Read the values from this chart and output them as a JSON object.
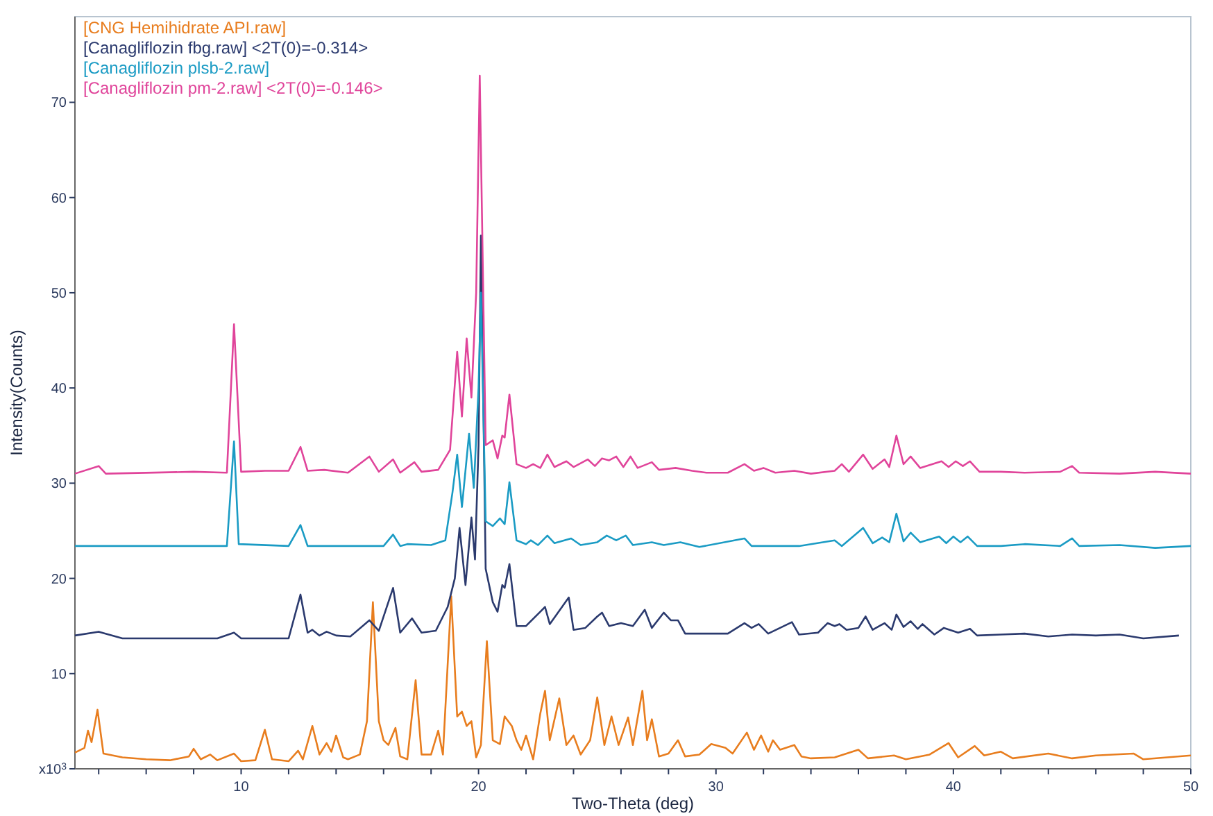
{
  "chart_data": {
    "type": "line",
    "xlabel": "Two-Theta (deg)",
    "ylabel": "Intensity(Counts)",
    "xlim": [
      3,
      50
    ],
    "ylim": [
      0,
      79
    ],
    "xticks": [
      {
        "value": 4,
        "label": null
      },
      {
        "value": 6,
        "label": null
      },
      {
        "value": 8,
        "label": null
      },
      10,
      {
        "value": 12,
        "label": null
      },
      {
        "value": 14,
        "label": null
      },
      {
        "value": 16,
        "label": null
      },
      {
        "value": 18,
        "label": null
      },
      20,
      {
        "value": 22,
        "label": null
      },
      {
        "value": 24,
        "label": null
      },
      {
        "value": 26,
        "label": null
      },
      {
        "value": 28,
        "label": null
      },
      30,
      {
        "value": 32,
        "label": null
      },
      {
        "value": 34,
        "label": null
      },
      {
        "value": 36,
        "label": null
      },
      {
        "value": 38,
        "label": null
      },
      40,
      {
        "value": 42,
        "label": null
      },
      {
        "value": 44,
        "label": null
      },
      {
        "value": 46,
        "label": null
      },
      {
        "value": 48,
        "label": null
      },
      50
    ],
    "yticks": [
      {
        "value": 0,
        "label": "x10$^{3}$"
      },
      10,
      20,
      30,
      40,
      50,
      60,
      70
    ],
    "grid": false,
    "legend": "top left",
    "marker": "none",
    "line_style": "solid",
    "series": [
      {
        "name": "[CNG Hemihidrate API.raw]",
        "color": "#e87d1e",
        "x": [
          3,
          3.4,
          3.55,
          3.7,
          3.95,
          4.2,
          5,
          6,
          7,
          7.8,
          8,
          8.3,
          8.7,
          9,
          9.7,
          10,
          10.6,
          11,
          11.3,
          12,
          12.4,
          12.6,
          13,
          13.3,
          13.6,
          13.8,
          14,
          14.3,
          14.5,
          15,
          15.3,
          15.55,
          15.8,
          16,
          16.2,
          16.5,
          16.7,
          17,
          17.35,
          17.6,
          18,
          18.3,
          18.5,
          18.85,
          19.1,
          19.3,
          19.5,
          19.7,
          19.9,
          20.1,
          20.35,
          20.6,
          20.9,
          21.1,
          21.4,
          21.6,
          21.8,
          22,
          22.3,
          22.6,
          22.8,
          23,
          23.4,
          23.7,
          24,
          24.3,
          24.7,
          25,
          25.3,
          25.6,
          25.9,
          26.3,
          26.5,
          26.9,
          27.1,
          27.3,
          27.6,
          28,
          28.4,
          28.7,
          29.3,
          29.8,
          30.4,
          30.7,
          31.3,
          31.6,
          31.9,
          32.2,
          32.4,
          32.7,
          33.3,
          33.6,
          34,
          35,
          36,
          36.4,
          37.5,
          38,
          39,
          39.8,
          40.2,
          40.9,
          41.3,
          42,
          42.5,
          44,
          45,
          46,
          47.6,
          48,
          50
        ],
        "values": [
          1.7,
          2.2,
          4,
          2.8,
          6.2,
          1.6,
          1.2,
          1,
          0.9,
          1.3,
          2.1,
          1,
          1.5,
          0.9,
          1.6,
          0.8,
          0.9,
          4.1,
          1,
          0.8,
          1.9,
          1,
          4.5,
          1.5,
          2.7,
          1.8,
          3.5,
          1.2,
          1,
          1.5,
          5,
          17.5,
          5,
          3,
          2.5,
          4.3,
          1.3,
          1,
          9.3,
          1.5,
          1.5,
          4,
          1.5,
          18.1,
          5.5,
          6,
          4.5,
          5,
          1.2,
          2.5,
          13.4,
          3,
          2.6,
          5.5,
          4.5,
          3,
          2,
          3.5,
          1,
          5.8,
          8.2,
          3,
          7.4,
          2.5,
          3.5,
          1.5,
          3,
          7.5,
          2.5,
          5.5,
          2.5,
          5.4,
          2.5,
          8.2,
          3,
          5.2,
          1.3,
          1.6,
          3,
          1.3,
          1.5,
          2.6,
          2.2,
          1.6,
          3.8,
          2,
          3.5,
          1.8,
          3,
          2,
          2.5,
          1.3,
          1.1,
          1.2,
          2,
          1.1,
          1.4,
          1,
          1.5,
          2.7,
          1.2,
          2.4,
          1.4,
          1.8,
          1.1,
          1.6,
          1.1,
          1.4,
          1.6,
          1,
          1.4
        ]
      },
      {
        "name": "[Canagliflozin fbg.raw] <2T(0)=-0.314>",
        "color": "#2b3a6e",
        "x": [
          3,
          4,
          5,
          7,
          9,
          9.7,
          10,
          12,
          12.5,
          12.8,
          13,
          13.3,
          13.6,
          14,
          14.6,
          15.4,
          15.8,
          16.4,
          16.7,
          17.2,
          17.6,
          18.2,
          18.7,
          19,
          19.2,
          19.45,
          19.7,
          19.85,
          20,
          20.1,
          20.3,
          20.6,
          20.8,
          21,
          21.1,
          21.3,
          21.6,
          22,
          22.6,
          22.8,
          23,
          23.8,
          24,
          24.5,
          25,
          25.2,
          25.5,
          26,
          26.5,
          27,
          27.3,
          27.8,
          28.1,
          28.4,
          28.7,
          29.5,
          30.5,
          31.2,
          31.5,
          31.8,
          32.2,
          33.2,
          33.5,
          34.3,
          34.7,
          35,
          35.2,
          35.5,
          36,
          36.3,
          36.6,
          37.1,
          37.4,
          37.6,
          37.9,
          38.2,
          38.5,
          38.7,
          39.2,
          39.6,
          40.2,
          40.7,
          41,
          42,
          43,
          44,
          45,
          46,
          47,
          48,
          49.5
        ],
        "values": [
          14,
          14.4,
          13.7,
          13.7,
          13.7,
          14.3,
          13.7,
          13.7,
          18.3,
          14.3,
          14.6,
          14,
          14.4,
          14,
          13.9,
          15.6,
          14.5,
          19,
          14.3,
          15.8,
          14.3,
          14.5,
          17,
          20,
          25.3,
          19.3,
          26.4,
          22,
          34,
          56,
          21,
          17.5,
          16.5,
          19.3,
          19,
          21.5,
          15,
          15,
          16.5,
          17,
          15.2,
          18,
          14.6,
          14.8,
          16,
          16.4,
          15,
          15.3,
          15,
          16.7,
          14.8,
          16.4,
          15.6,
          15.6,
          14.2,
          14.2,
          14.2,
          15.3,
          14.8,
          15.2,
          14.2,
          15.4,
          14.1,
          14.3,
          15.3,
          15,
          15.2,
          14.6,
          14.8,
          16,
          14.6,
          15.3,
          14.6,
          16.2,
          14.9,
          15.5,
          14.7,
          15.2,
          14.1,
          14.8,
          14.3,
          14.7,
          14,
          14.1,
          14.2,
          13.9,
          14.1,
          14,
          14.1,
          13.7,
          14
        ]
      },
      {
        "name": "[Canagliflozin plsb-2.raw]",
        "color": "#1a9bc4",
        "x": [
          3,
          9.4,
          9.7,
          9.9,
          12,
          12.5,
          12.8,
          16,
          16.4,
          16.7,
          17,
          18,
          18.6,
          18.9,
          19.1,
          19.3,
          19.6,
          19.8,
          20,
          20.1,
          20.3,
          20.6,
          20.9,
          21.1,
          21.3,
          21.6,
          22,
          22.2,
          22.5,
          22.9,
          23.2,
          23.9,
          24.3,
          25,
          25.4,
          25.8,
          26.2,
          26.5,
          27.3,
          27.8,
          28.5,
          29.3,
          31.2,
          31.5,
          33.5,
          35,
          35.3,
          36.2,
          36.6,
          37,
          37.3,
          37.6,
          37.9,
          38.2,
          38.6,
          39.4,
          39.7,
          40,
          40.3,
          40.6,
          41,
          42,
          43,
          44.5,
          45,
          45.3,
          47,
          48.5,
          50
        ],
        "values": [
          23.4,
          23.4,
          34.4,
          23.6,
          23.4,
          25.6,
          23.4,
          23.4,
          24.6,
          23.4,
          23.6,
          23.5,
          24,
          29,
          33,
          27.5,
          35.2,
          29.5,
          40,
          50,
          26,
          25.5,
          26.3,
          25.7,
          30.1,
          24,
          23.6,
          24,
          23.5,
          24.5,
          23.7,
          24.2,
          23.5,
          23.8,
          24.5,
          24,
          24.5,
          23.5,
          23.8,
          23.5,
          23.8,
          23.3,
          24.2,
          23.4,
          23.4,
          24,
          23.4,
          25.3,
          23.7,
          24.3,
          23.8,
          26.8,
          23.9,
          24.8,
          23.8,
          24.4,
          23.7,
          24.4,
          23.8,
          24.4,
          23.4,
          23.4,
          23.6,
          23.4,
          24.2,
          23.4,
          23.5,
          23.2,
          23.4
        ]
      },
      {
        "name": "[Canagliflozin pm-2.raw] <2T(0)=-0.146>",
        "color": "#e0449a",
        "x": [
          3,
          4,
          4.3,
          8,
          9.4,
          9.7,
          10,
          11,
          12,
          12.5,
          12.8,
          13.5,
          14.5,
          15.4,
          15.8,
          16.4,
          16.7,
          17.3,
          17.6,
          18.3,
          18.8,
          19.1,
          19.3,
          19.5,
          19.7,
          19.9,
          20.05,
          20.3,
          20.6,
          20.8,
          21,
          21.1,
          21.3,
          21.6,
          22,
          22.3,
          22.6,
          22.9,
          23.2,
          23.7,
          24,
          24.6,
          24.9,
          25.2,
          25.5,
          25.8,
          26.1,
          26.4,
          26.7,
          27.3,
          27.6,
          28.3,
          29,
          29.6,
          30.5,
          31.2,
          31.6,
          32,
          32.5,
          33.3,
          34,
          35,
          35.3,
          35.6,
          36.2,
          36.6,
          37.1,
          37.3,
          37.6,
          37.9,
          38.2,
          38.6,
          39.5,
          39.8,
          40.1,
          40.4,
          40.7,
          41.1,
          42,
          43,
          44.5,
          45,
          45.3,
          47,
          48.5,
          50
        ],
        "values": [
          31,
          31.8,
          31,
          31.2,
          31.1,
          46.7,
          31.2,
          31.3,
          31.3,
          33.8,
          31.3,
          31.4,
          31.1,
          32.8,
          31.2,
          32.5,
          31.1,
          32.2,
          31.2,
          31.4,
          33.5,
          43.8,
          37,
          45.2,
          39,
          50,
          72.8,
          34,
          34.5,
          32.6,
          35,
          34.8,
          39.3,
          32,
          31.6,
          32,
          31.6,
          33,
          31.7,
          32.3,
          31.7,
          32.5,
          31.8,
          32.6,
          32.4,
          32.8,
          31.7,
          32.8,
          31.6,
          32.2,
          31.4,
          31.6,
          31.3,
          31.1,
          31.1,
          32,
          31.3,
          31.6,
          31.1,
          31.3,
          31,
          31.3,
          32,
          31.2,
          33,
          31.5,
          32.5,
          31.7,
          35,
          32,
          32.8,
          31.6,
          32.3,
          31.7,
          32.3,
          31.8,
          32.3,
          31.2,
          31.2,
          31.1,
          31.2,
          31.8,
          31.1,
          31,
          31.2,
          31
        ]
      }
    ]
  }
}
